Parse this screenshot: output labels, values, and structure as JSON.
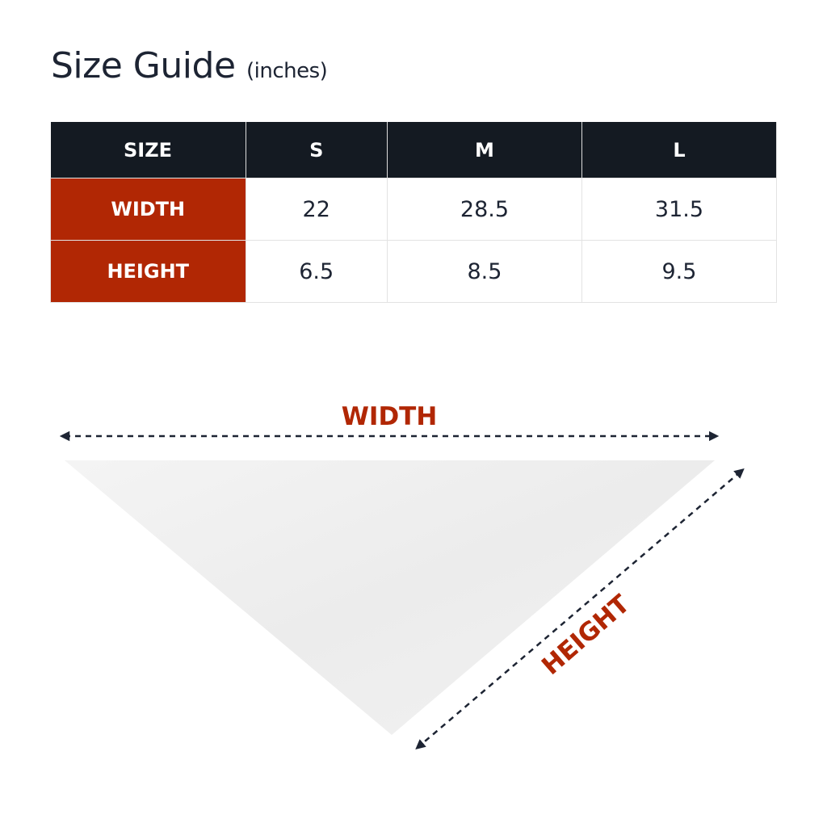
{
  "title": {
    "main": "Size Guide",
    "unit": "(inches)"
  },
  "table": {
    "header": [
      "SIZE",
      "S",
      "M",
      "L"
    ],
    "rows": [
      {
        "label": "WIDTH",
        "values": [
          "22",
          "28.5",
          "31.5"
        ]
      },
      {
        "label": "HEIGHT",
        "values": [
          "6.5",
          "8.5",
          "9.5"
        ]
      }
    ]
  },
  "diagram": {
    "width_label": "WIDTH",
    "height_label": "HEIGHT"
  },
  "colors": {
    "accent": "#b12704",
    "header": "#141a22",
    "text": "#1d2433"
  }
}
